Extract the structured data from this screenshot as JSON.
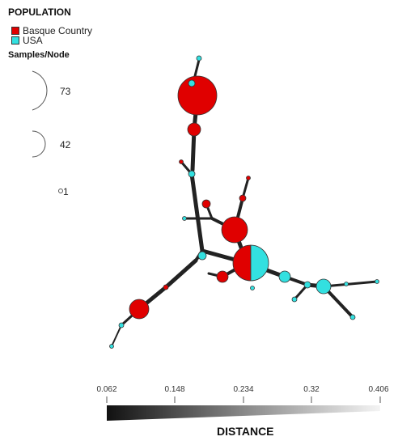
{
  "legend": {
    "title": "POPULATION",
    "items": [
      {
        "label": "Basque Country",
        "color": "#e00000"
      },
      {
        "label": "USA",
        "color": "#33e0e0"
      }
    ],
    "samples_title": "Samples/Node",
    "sizes": [
      "73",
      "42",
      "1"
    ]
  },
  "scale": {
    "title": "DISTANCE",
    "ticks": [
      "0.062",
      "0.148",
      "0.234",
      "0.32",
      "0.406"
    ]
  },
  "colors": {
    "basque": "#e00000",
    "usa": "#33e0e0",
    "edge": "#222222"
  }
}
